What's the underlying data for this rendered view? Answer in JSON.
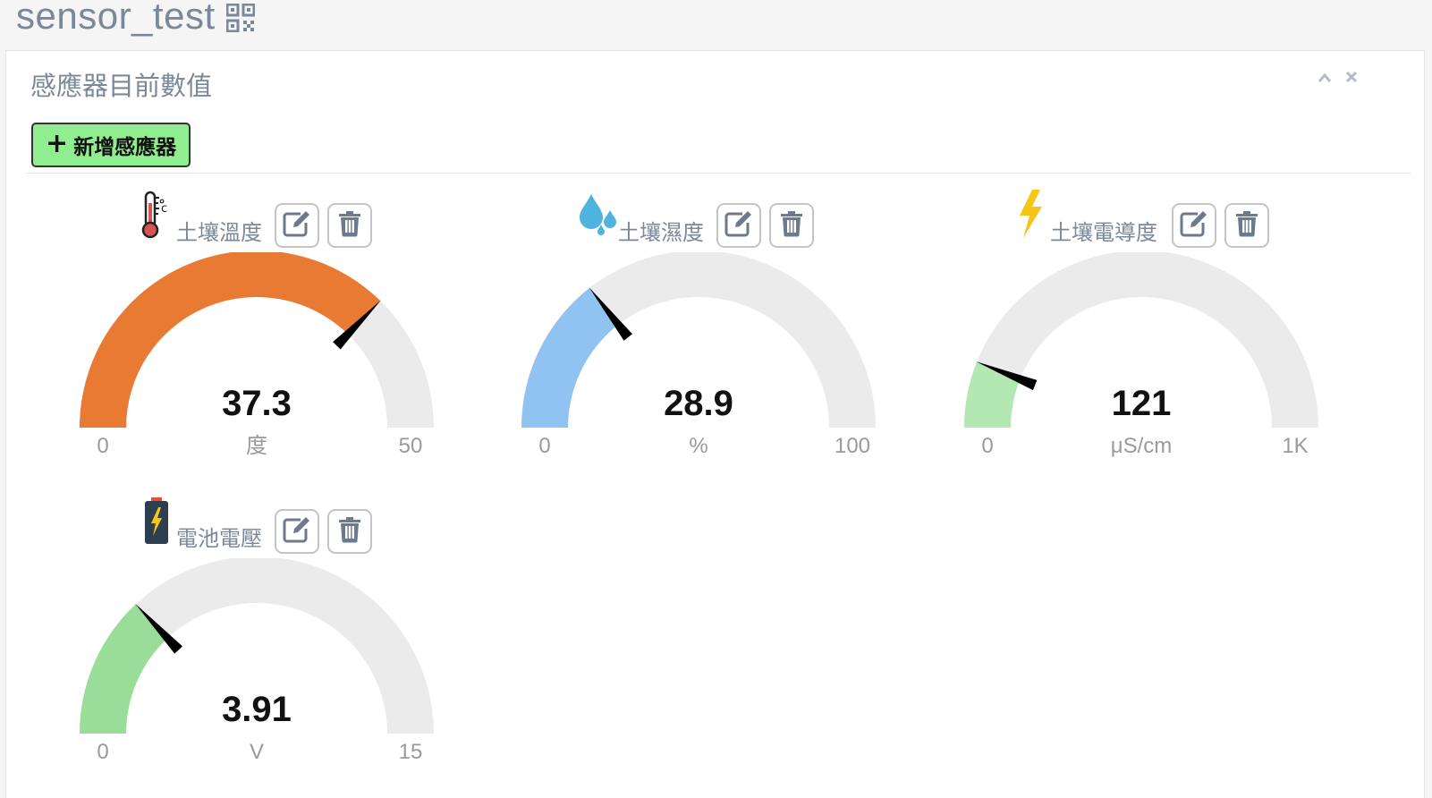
{
  "page": {
    "title": "sensor_test",
    "qr_icon": "qrcode-icon"
  },
  "panel": {
    "title": "感應器目前數值",
    "collapse_icon": "chevron-up-icon",
    "close_icon": "close-icon",
    "add_button": {
      "icon": "plus-icon",
      "label": "新增感應器"
    }
  },
  "sensors": [
    {
      "name": "土壤溫度",
      "icon": "thermometer-icon",
      "value": "37.3",
      "value_num": 37.3,
      "min": 0,
      "max": 50,
      "min_label": "0",
      "max_label": "50",
      "unit": "度",
      "color": "#e97a34",
      "edit_icon": "edit-icon",
      "delete_icon": "trash-icon"
    },
    {
      "name": "土壤濕度",
      "icon": "water-drops-icon",
      "value": "28.9",
      "value_num": 28.9,
      "min": 0,
      "max": 100,
      "min_label": "0",
      "max_label": "100",
      "unit": "%",
      "color": "#90c3f2",
      "edit_icon": "edit-icon",
      "delete_icon": "trash-icon"
    },
    {
      "name": "土壤電導度",
      "icon": "lightning-icon",
      "value": "121",
      "value_num": 121,
      "min": 0,
      "max": 1000,
      "min_label": "0",
      "max_label": "1K",
      "unit": "μS/cm",
      "color": "#b3e8b3",
      "edit_icon": "edit-icon",
      "delete_icon": "trash-icon"
    },
    {
      "name": "電池電壓",
      "icon": "battery-icon",
      "value": "3.91",
      "value_num": 3.91,
      "min": 0,
      "max": 15,
      "min_label": "0",
      "max_label": "15",
      "unit": "V",
      "color": "#99dd99",
      "edit_icon": "edit-icon",
      "delete_icon": "trash-icon"
    }
  ],
  "colors": {
    "gauge_track": "#ebebeb",
    "needle": "#000000",
    "title_text": "#7a8899",
    "add_button_bg": "#90ee90"
  }
}
